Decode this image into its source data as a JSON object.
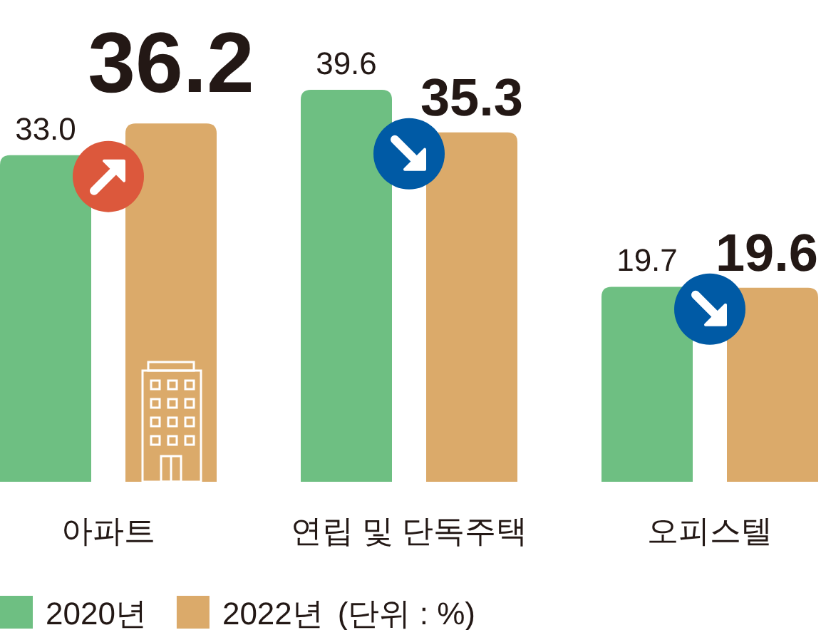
{
  "chart_data": {
    "type": "bar",
    "categories": [
      "아파트",
      "연립 및 단독주택",
      "오피스텔"
    ],
    "series": [
      {
        "name": "2020년",
        "color": "#6ebf82",
        "values": [
          33.0,
          39.6,
          19.7
        ],
        "value_labels": [
          "33.0",
          "39.6",
          "19.7"
        ]
      },
      {
        "name": "2022년",
        "color": "#dbaa6a",
        "values": [
          36.2,
          35.3,
          19.6
        ],
        "value_labels": [
          "36.2",
          "35.3",
          "19.6"
        ]
      }
    ],
    "legend": "bottom",
    "annotations": [
      "(단위 : %)"
    ]
  }
}
